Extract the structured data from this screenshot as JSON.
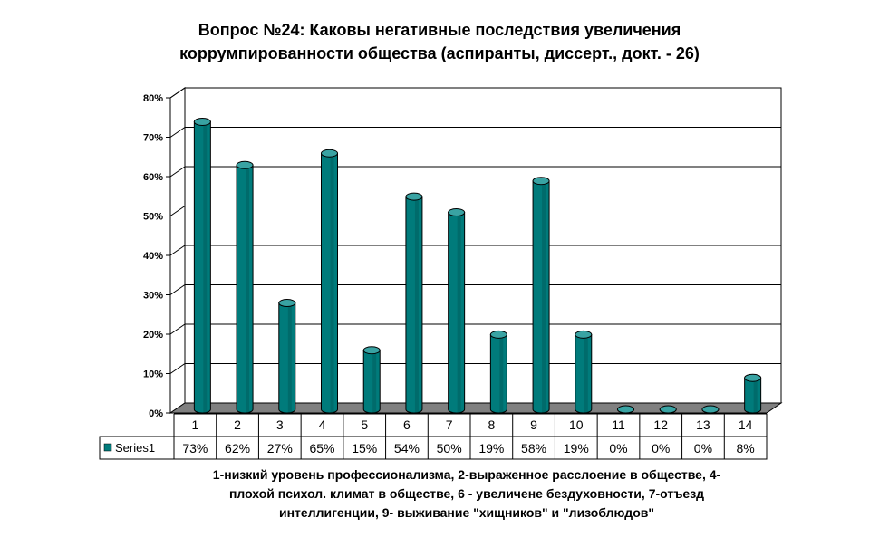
{
  "chart_data": {
    "type": "bar",
    "title_lines": [
      "Вопрос №24: Каковы негативные последствия увеличения",
      "коррумпированности общества (аспиранты, диссерт., докт. - 26)"
    ],
    "categories": [
      "1",
      "2",
      "3",
      "4",
      "5",
      "6",
      "7",
      "8",
      "9",
      "10",
      "11",
      "12",
      "13",
      "14"
    ],
    "series": [
      {
        "name": "Series1",
        "values": [
          73,
          62,
          27,
          65,
          15,
          54,
          50,
          19,
          58,
          19,
          0,
          0,
          0,
          8
        ],
        "value_labels": [
          "73%",
          "62%",
          "27%",
          "65%",
          "15%",
          "54%",
          "50%",
          "19%",
          "58%",
          "19%",
          "0%",
          "0%",
          "0%",
          "8%"
        ]
      }
    ],
    "y_ticks": [
      "0%",
      "10%",
      "20%",
      "30%",
      "40%",
      "50%",
      "60%",
      "70%",
      "80%"
    ],
    "ylim": [
      0,
      80
    ],
    "grid": true,
    "legend": "data-table",
    "colors": {
      "bar": "#007b7b",
      "bar_side": "#004f4f",
      "bar_top": "#39a3a3",
      "floor": "#808080"
    },
    "caption_lines": [
      "1-низкий уровень профессионализма, 2-выраженное расслоение в обществе, 4-",
      "плохой психол. климат в обществе, 6 - увеличене бездуховности, 7-отъезд",
      "интеллигенции, 9- выживание \"хищников\" и \"лизоблюдов\""
    ]
  }
}
